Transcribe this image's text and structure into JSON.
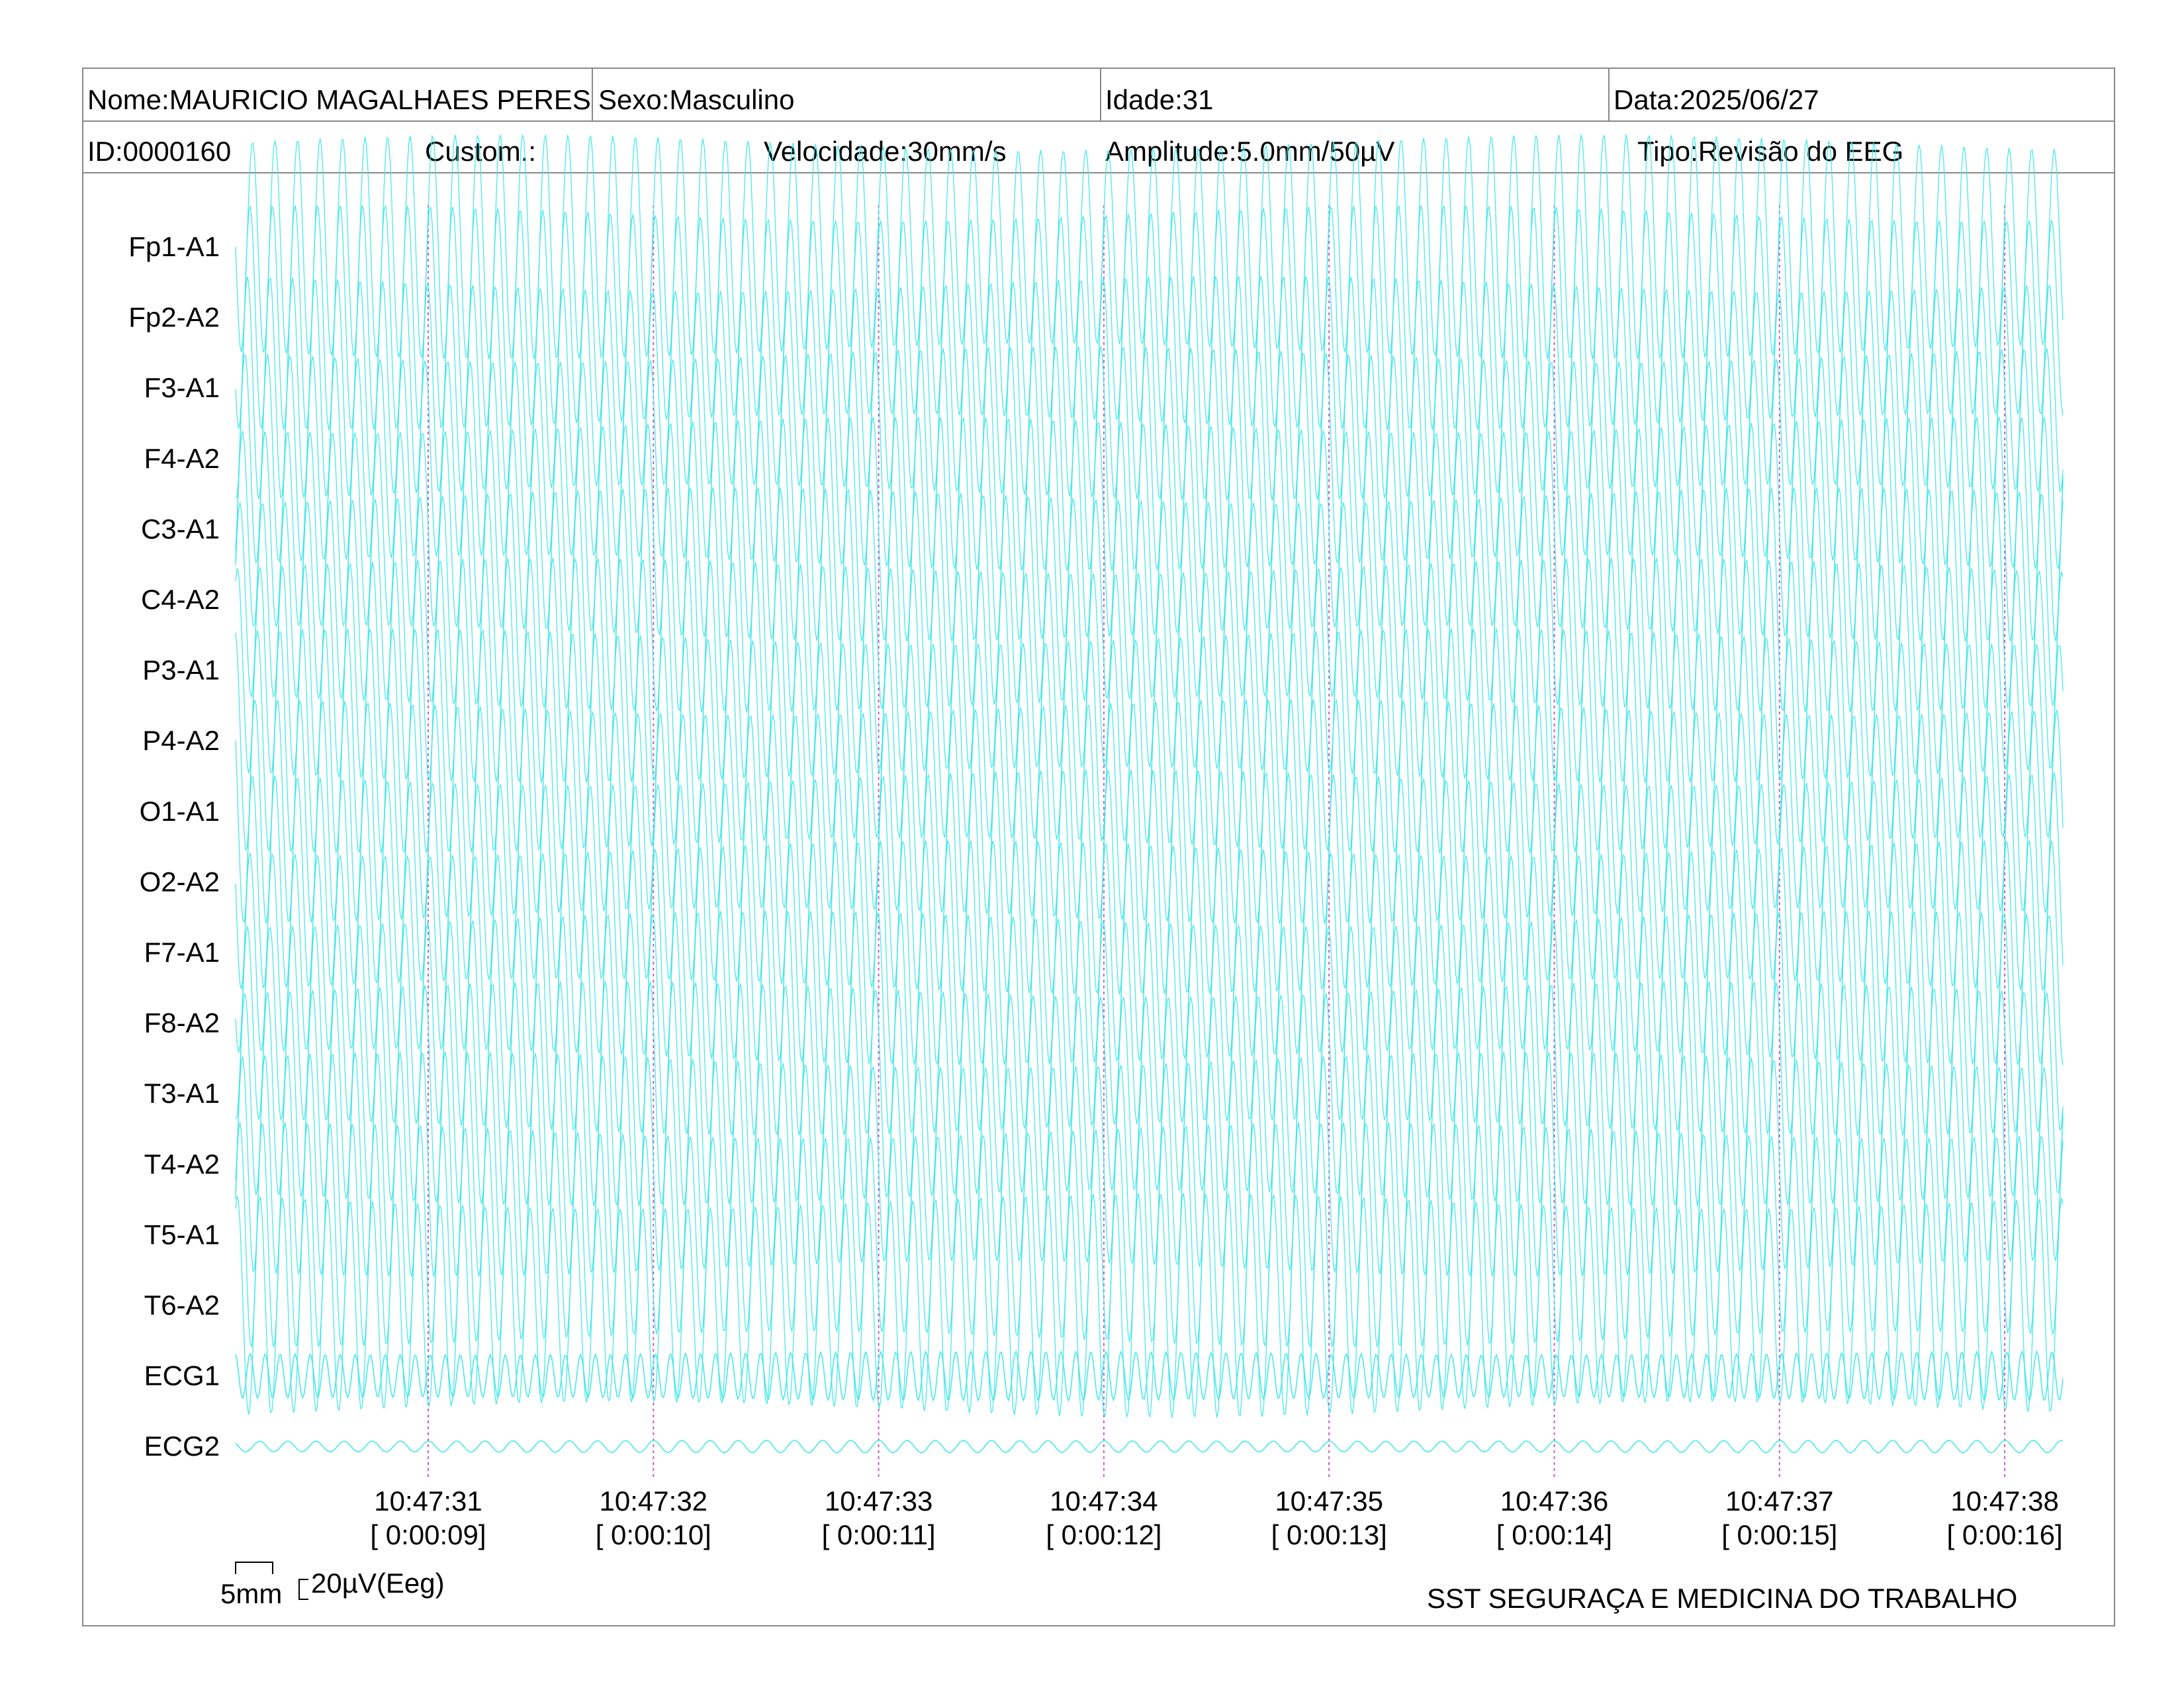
{
  "header": {
    "nome": "Nome:MAURICIO MAGALHAES PERES",
    "sexo": "Sexo:Masculino",
    "idade": "Idade:31",
    "data": "Data:2025/06/27",
    "id": "ID:0000160",
    "custom": "Custom.:",
    "velocidade": "Velocidade:30mm/s",
    "amplitude": "Amplitude:5.0mm/50µV",
    "tipo": "Tipo:Revisão do EEG"
  },
  "chart_data": {
    "type": "line",
    "channels": [
      "Fp1-A1",
      "Fp2-A2",
      "F3-A1",
      "F4-A2",
      "C3-A1",
      "C4-A2",
      "P3-A1",
      "P4-A2",
      "O1-A1",
      "O2-A2",
      "F7-A1",
      "F8-A2",
      "T3-A1",
      "T4-A2",
      "T5-A1",
      "T6-A2",
      "ECG1",
      "ECG2"
    ],
    "time_marks": [
      {
        "clock": "10:47:31",
        "elapsed": "[ 0:00:09]"
      },
      {
        "clock": "10:47:32",
        "elapsed": "[ 0:00:10]"
      },
      {
        "clock": "10:47:33",
        "elapsed": "[ 0:00:11]"
      },
      {
        "clock": "10:47:34",
        "elapsed": "[ 0:00:12]"
      },
      {
        "clock": "10:47:35",
        "elapsed": "[ 0:00:13]"
      },
      {
        "clock": "10:47:36",
        "elapsed": "[ 0:00:14]"
      },
      {
        "clock": "10:47:37",
        "elapsed": "[ 0:00:15]"
      },
      {
        "clock": "10:47:38",
        "elapsed": "[ 0:00:16]"
      }
    ],
    "trace_color": "#3ee8e8",
    "marker_color": "#d050d0",
    "eeg_frequency_hz": 10,
    "ecg1_frequency_hz": 15,
    "ecg2_frequency_hz": 8,
    "eeg_amplitude_uv": 55,
    "ecg1_amplitude_uv": 12,
    "ecg2_amplitude_uv": 3
  },
  "scale": {
    "time_label": "5mm",
    "amplitude_label": "20µV(Eeg)"
  },
  "footer": {
    "organization": "SST SEGURAÇA E MEDICINA DO TRABALHO"
  }
}
